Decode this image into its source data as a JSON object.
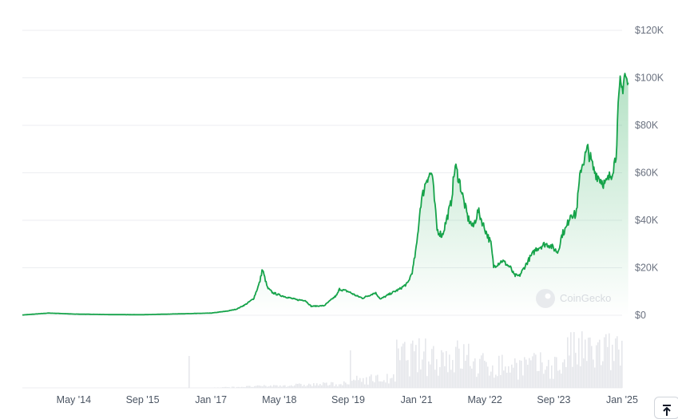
{
  "chart_data": {
    "type": "area",
    "title": "",
    "xlabel": "",
    "ylabel": "",
    "ylim": [
      0,
      120000
    ],
    "yticks": [
      {
        "value": 120000,
        "label": "$120K"
      },
      {
        "value": 100000,
        "label": "$100K"
      },
      {
        "value": 80000,
        "label": "$80K"
      },
      {
        "value": 60000,
        "label": "$60K"
      },
      {
        "value": 40000,
        "label": "$40K"
      },
      {
        "value": 20000,
        "label": "$20K"
      },
      {
        "value": 0,
        "label": "$0"
      }
    ],
    "xticks": [
      {
        "value": 2014.33,
        "label": "May '14"
      },
      {
        "value": 2015.67,
        "label": "Sep '15"
      },
      {
        "value": 2017.0,
        "label": "Jan '17"
      },
      {
        "value": 2018.33,
        "label": "May '18"
      },
      {
        "value": 2019.67,
        "label": "Sep '19"
      },
      {
        "value": 2021.0,
        "label": "Jan '21"
      },
      {
        "value": 2022.33,
        "label": "May '22"
      },
      {
        "value": 2023.67,
        "label": "Sep '23"
      },
      {
        "value": 2025.0,
        "label": "Jan '25"
      }
    ],
    "xlim": [
      2013.33,
      2025.0
    ],
    "grid": true,
    "colors": {
      "line": "#16a34a",
      "fill_top": "#16a34a",
      "volume": "#e5e7eb"
    },
    "series": [
      {
        "x": [
          2013.33,
          2013.83,
          2014.0,
          2014.33,
          2014.83,
          2015.0,
          2015.67,
          2016.0,
          2016.5,
          2017.0,
          2017.33,
          2017.5,
          2017.67,
          2017.83,
          2017.95,
          2018.0,
          2018.1,
          2018.2,
          2018.33,
          2018.5,
          2018.67,
          2018.83,
          2018.95,
          2019.2,
          2019.45,
          2019.5,
          2019.67,
          2019.83,
          2019.95,
          2020.2,
          2020.3,
          2020.5,
          2020.67,
          2020.83,
          2020.92,
          2021.0,
          2021.08,
          2021.2,
          2021.3,
          2021.4,
          2021.5,
          2021.58,
          2021.67,
          2021.75,
          2021.83,
          2021.92,
          2022.0,
          2022.1,
          2022.2,
          2022.3,
          2022.45,
          2022.5,
          2022.67,
          2022.83,
          2022.9,
          2023.0,
          2023.2,
          2023.33,
          2023.5,
          2023.6,
          2023.75,
          2023.83,
          2023.92,
          2024.0,
          2024.1,
          2024.2,
          2024.33,
          2024.45,
          2024.55,
          2024.67,
          2024.8,
          2024.88,
          2024.92,
          2024.96,
          2025.0,
          2025.05,
          2025.12
        ],
        "y": [
          100,
          900,
          800,
          500,
          350,
          280,
          230,
          400,
          650,
          900,
          1800,
          2600,
          4500,
          7000,
          14000,
          19500,
          11500,
          9500,
          8500,
          7500,
          6500,
          6300,
          3800,
          4000,
          8500,
          11000,
          10000,
          8200,
          7200,
          9500,
          6800,
          9200,
          11000,
          13500,
          18500,
          29000,
          47000,
          58000,
          60000,
          36000,
          33500,
          40000,
          47000,
          63000,
          57000,
          48000,
          41000,
          37000,
          44000,
          38000,
          30000,
          20500,
          23000,
          20000,
          16800,
          16500,
          24000,
          28000,
          30000,
          29500,
          26500,
          34000,
          37000,
          43000,
          42000,
          62000,
          70000,
          61000,
          58000,
          55000,
          60000,
          67000,
          85000,
          97000,
          95000,
          102000,
          96000
        ]
      }
    ],
    "watermark": "CoinGecko"
  }
}
